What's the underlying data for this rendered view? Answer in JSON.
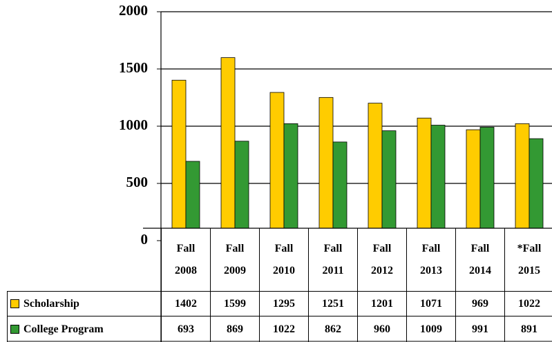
{
  "chart_data": {
    "type": "bar",
    "categories": [
      "Fall 2008",
      "Fall 2009",
      "Fall 2010",
      "Fall 2011",
      "Fall 2012",
      "Fall 2013",
      "Fall 2014",
      "*Fall 2015"
    ],
    "series": [
      {
        "name": "Scholarship",
        "color": "#ffcc00",
        "values": [
          1402,
          1599,
          1295,
          1251,
          1201,
          1071,
          969,
          1022
        ]
      },
      {
        "name": "College Program",
        "color": "#339933",
        "values": [
          693,
          869,
          1022,
          862,
          960,
          1009,
          991,
          891
        ]
      }
    ],
    "ylim": [
      0,
      2000
    ],
    "yticks": [
      0,
      500,
      1000,
      1500,
      2000
    ],
    "grid": true
  }
}
